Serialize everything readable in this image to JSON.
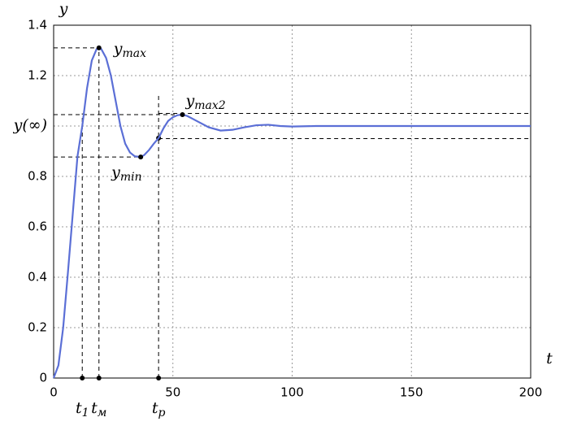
{
  "chart_data": {
    "type": "line",
    "xlabel": "t",
    "ylabel": "y",
    "xlim": [
      0,
      200
    ],
    "ylim": [
      0,
      1.4
    ],
    "xticks": [
      0,
      50,
      100,
      150,
      200
    ],
    "yticks": [
      0,
      0.2,
      0.4,
      0.6,
      0.8,
      {
        "value": 1,
        "label": "y(∞)"
      },
      1.2,
      1.4
    ],
    "grid": true,
    "series": [
      {
        "color": "#5b6fd6",
        "x": [
          0,
          2,
          4,
          6,
          8,
          10,
          12,
          14,
          16,
          18,
          19,
          20,
          22,
          24,
          26,
          28,
          30,
          32,
          34,
          36.5,
          38,
          40,
          42,
          44,
          46,
          48,
          50,
          52,
          54,
          56,
          58,
          60,
          65,
          70,
          75,
          80,
          85,
          90,
          95,
          100,
          110,
          120,
          150,
          200
        ],
        "values": [
          0,
          0.05,
          0.2,
          0.42,
          0.65,
          0.88,
          1.0,
          1.15,
          1.26,
          1.305,
          1.31,
          1.305,
          1.27,
          1.2,
          1.1,
          1.0,
          0.93,
          0.895,
          0.88,
          0.877,
          0.885,
          0.905,
          0.93,
          0.952,
          0.99,
          1.02,
          1.035,
          1.043,
          1.045,
          1.04,
          1.03,
          1.02,
          0.995,
          0.982,
          0.985,
          0.995,
          1.003,
          1.005,
          1.0,
          0.998,
          1.0,
          1.0,
          1.0,
          1.0
        ]
      }
    ],
    "points": [
      {
        "name": "y",
        "sub": "max",
        "x": 19,
        "y": 1.31
      },
      {
        "name": "y",
        "sub": "min",
        "x": 36.5,
        "y": 0.877
      },
      {
        "name": "y",
        "sub": "max2",
        "x": 54,
        "y": 1.045
      }
    ],
    "times": [
      {
        "name": "t",
        "sub": "1",
        "x": 12,
        "top": 1.05
      },
      {
        "name": "t",
        "sub": "м",
        "x": 19,
        "top": 1.31
      },
      {
        "name": "t",
        "sub": "p",
        "x": 44,
        "top": 1.12,
        "hit": 0.952
      }
    ],
    "band": [
      0.95,
      1.05
    ]
  }
}
